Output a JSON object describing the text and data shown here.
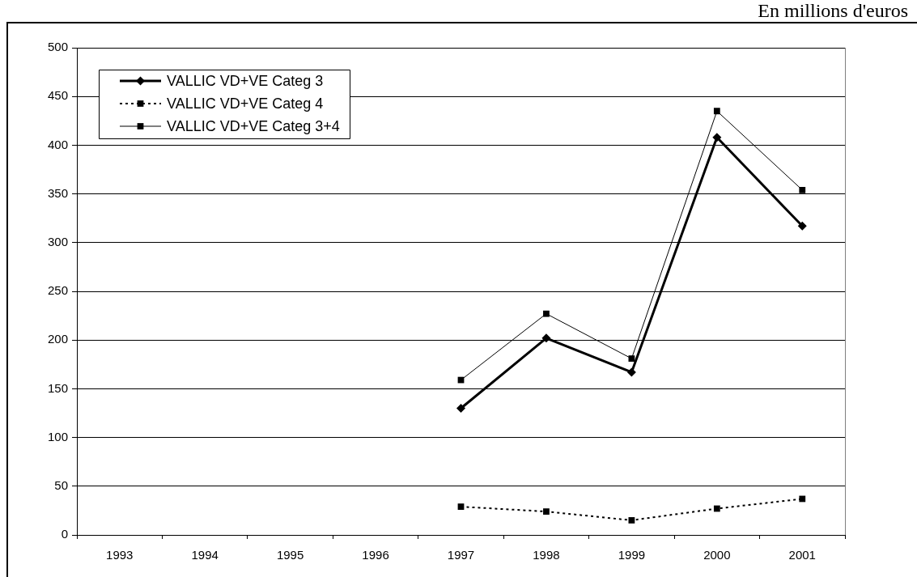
{
  "chart_data": {
    "type": "line",
    "annotations": [
      "En millions d'euros"
    ],
    "categories": [
      "1993",
      "1994",
      "1995",
      "1996",
      "1997",
      "1998",
      "1999",
      "2000",
      "2001"
    ],
    "series": [
      {
        "name": "VALLIC VD+VE Categ 3",
        "color": "#000000",
        "marker": "diamond",
        "line_style": "solid",
        "values": [
          null,
          null,
          null,
          null,
          130,
          202,
          167,
          408,
          317
        ]
      },
      {
        "name": "VALLIC VD+VE Categ 4",
        "color": "#000000",
        "marker": "square",
        "line_style": "dotted",
        "values": [
          null,
          null,
          null,
          null,
          29,
          24,
          15,
          27,
          37
        ]
      },
      {
        "name": "VALLIC VD+VE Categ 3+4",
        "color": "#000000",
        "marker": "square",
        "line_style": "solid",
        "values": [
          null,
          null,
          null,
          null,
          159,
          227,
          181,
          435,
          354
        ]
      }
    ],
    "ylim": [
      0,
      500
    ],
    "yticks": [
      0,
      50,
      100,
      150,
      200,
      250,
      300,
      350,
      400,
      450,
      500
    ],
    "grid": "y",
    "legend": "top left"
  }
}
